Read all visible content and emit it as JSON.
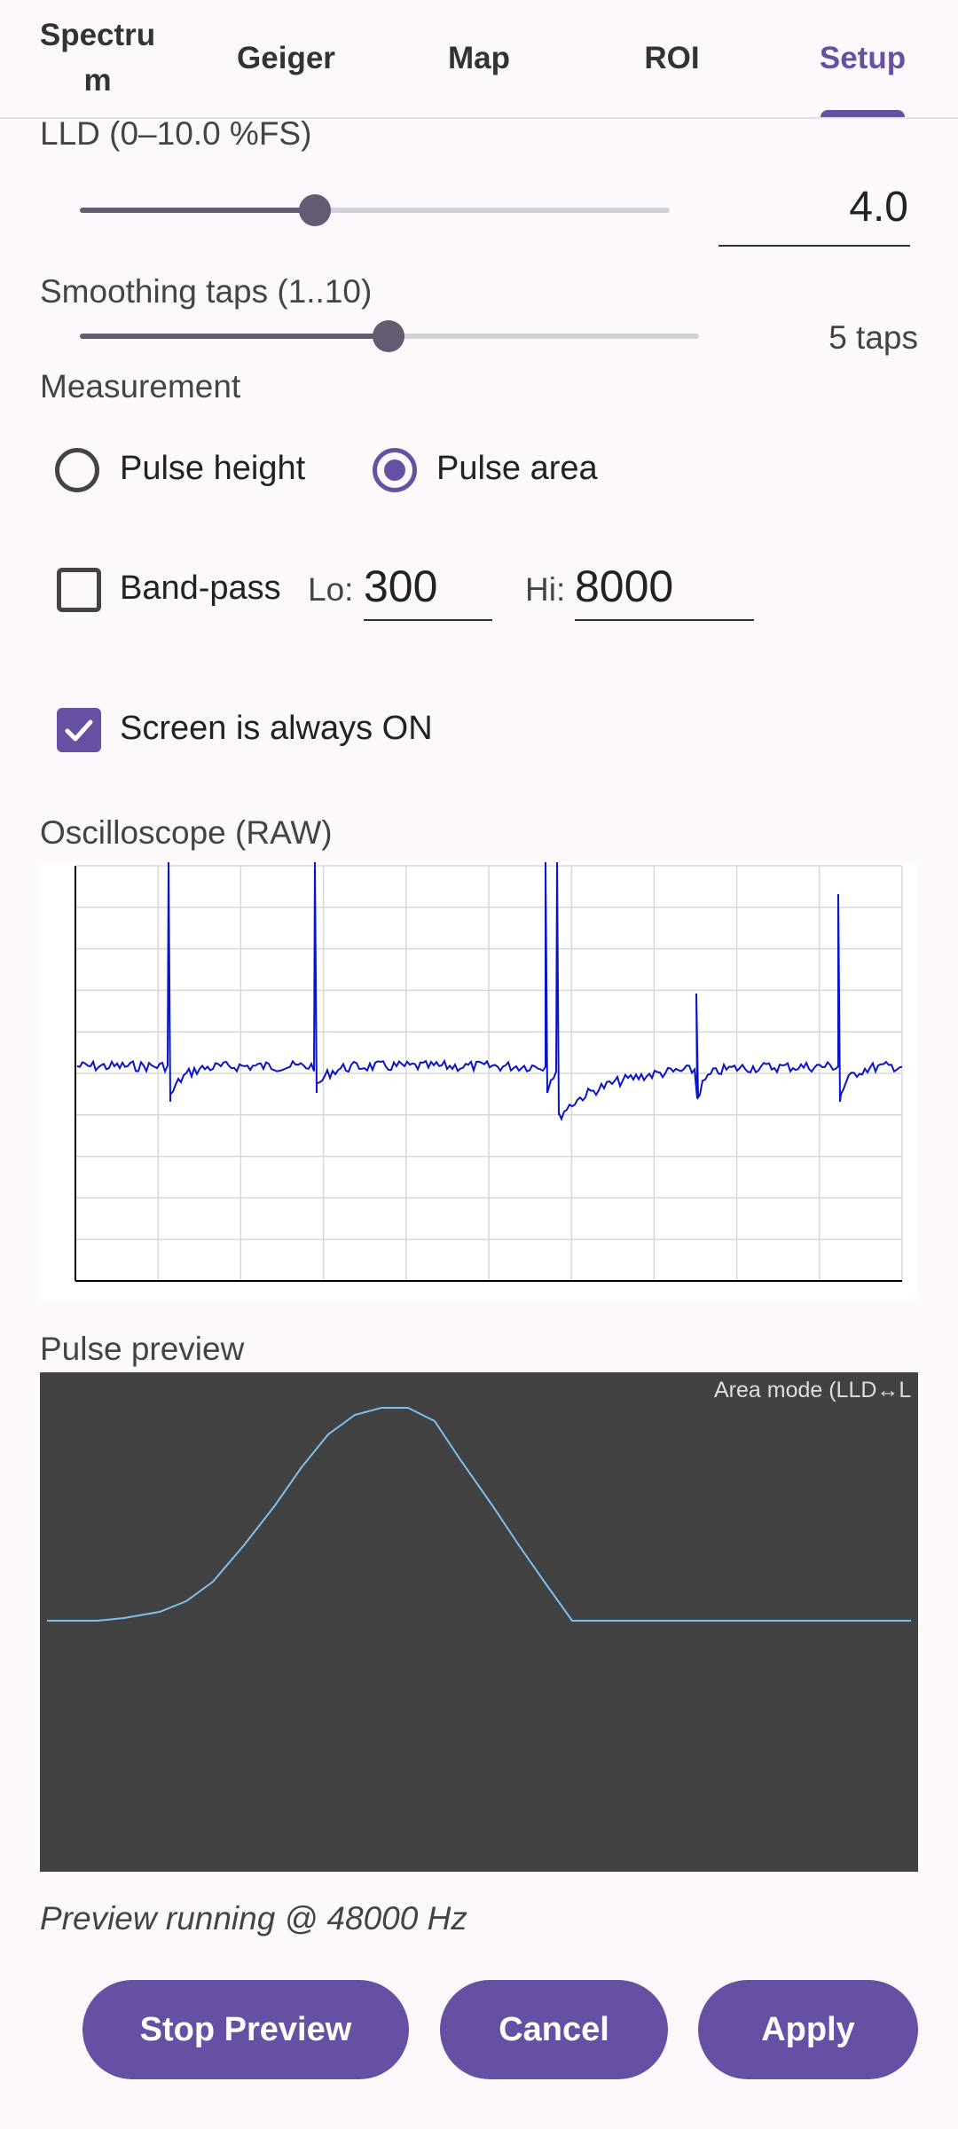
{
  "tabs": [
    {
      "label": "Spectru\nm",
      "active": false
    },
    {
      "label": "Geiger",
      "active": false
    },
    {
      "label": "Map",
      "active": false
    },
    {
      "label": "ROI",
      "active": false
    },
    {
      "label": "Setup",
      "active": true
    }
  ],
  "lld": {
    "label": "LLD (0–10.0 %FS)",
    "value": "4.0",
    "min": 0,
    "max": 10,
    "current": 4.0
  },
  "smoothing": {
    "label": "Smoothing taps (1..10)",
    "value_text": "5 taps",
    "min": 1,
    "max": 10,
    "current": 5
  },
  "measurement": {
    "label": "Measurement",
    "options": [
      {
        "label": "Pulse height",
        "selected": false
      },
      {
        "label": "Pulse area",
        "selected": true
      }
    ]
  },
  "bandpass": {
    "label": "Band-pass",
    "checked": false,
    "lo_label": "Lo:",
    "lo_value": "300",
    "hi_label": "Hi:",
    "hi_value": "8000"
  },
  "screen_on": {
    "label": "Screen is always ON",
    "checked": true
  },
  "oscilloscope": {
    "title": "Oscilloscope (RAW)",
    "grid": true
  },
  "pulse_preview": {
    "title": "Pulse preview",
    "annotation": "Area mode (LLD↔L"
  },
  "status": "Preview running @ 48000 Hz",
  "buttons": {
    "stop_preview": "Stop Preview",
    "cancel": "Cancel",
    "apply": "Apply"
  },
  "colors": {
    "accent": "#6650a4",
    "trace": "#0a14c8",
    "preview_trace": "#7ec0f0",
    "preview_bg": "#424242"
  }
}
